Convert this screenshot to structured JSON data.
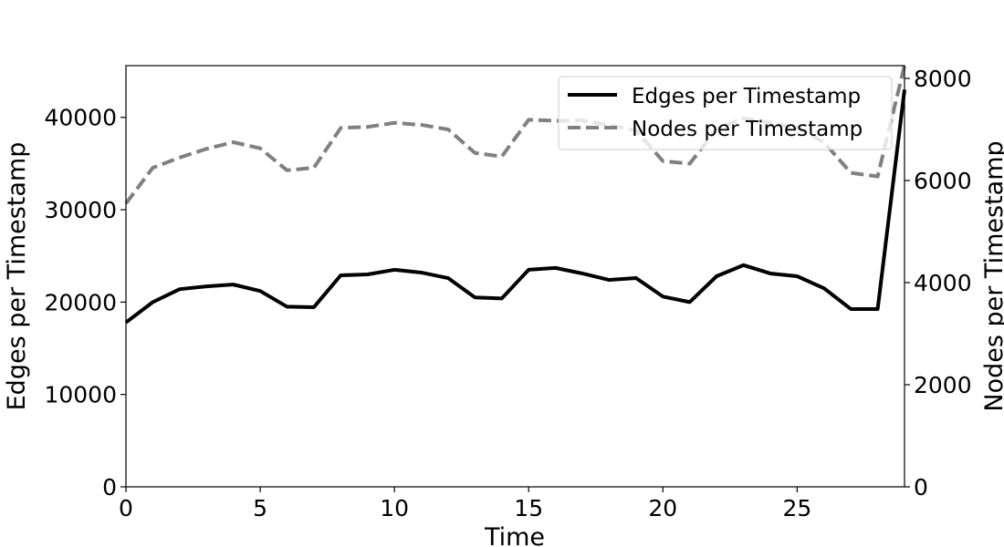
{
  "chart_data": {
    "type": "line",
    "xlabel": "Time",
    "ylabel_left": "Edges per Timestamp",
    "ylabel_right": "Nodes per Timestamp",
    "xlim": [
      0,
      29
    ],
    "ylim_left": [
      0,
      45600
    ],
    "ylim_right": [
      0,
      8250
    ],
    "xticks": [
      0,
      5,
      10,
      15,
      20,
      25
    ],
    "yticks_left": [
      0,
      10000,
      20000,
      30000,
      40000
    ],
    "yticks_right": [
      0,
      2000,
      4000,
      6000,
      8000
    ],
    "grid": false,
    "legend_position": "top-right",
    "x": [
      0,
      1,
      2,
      3,
      4,
      5,
      6,
      7,
      8,
      9,
      10,
      11,
      12,
      13,
      14,
      15,
      16,
      17,
      18,
      19,
      20,
      21,
      22,
      23,
      24,
      25,
      26,
      27,
      28,
      29
    ],
    "series": [
      {
        "name": "Edges per Timestamp",
        "axis": "left",
        "color": "#000000",
        "style": "solid",
        "values": [
          17800,
          20000,
          21400,
          21700,
          21900,
          21200,
          19500,
          19450,
          22900,
          23000,
          23500,
          23200,
          22600,
          20500,
          20400,
          23500,
          23700,
          23100,
          22400,
          22600,
          20600,
          20000,
          22800,
          24000,
          23100,
          22800,
          21500,
          19250,
          19250,
          43000
        ]
      },
      {
        "name": "Nodes per Timestamp",
        "axis": "right",
        "color": "#808080",
        "style": "dashed",
        "values": [
          5550,
          6250,
          6450,
          6620,
          6750,
          6630,
          6200,
          6250,
          7030,
          7050,
          7130,
          7090,
          7000,
          6540,
          6470,
          7190,
          7170,
          7180,
          7080,
          6980,
          6380,
          6330,
          7010,
          7220,
          7130,
          7030,
          6750,
          6150,
          6080,
          8250
        ]
      }
    ]
  }
}
